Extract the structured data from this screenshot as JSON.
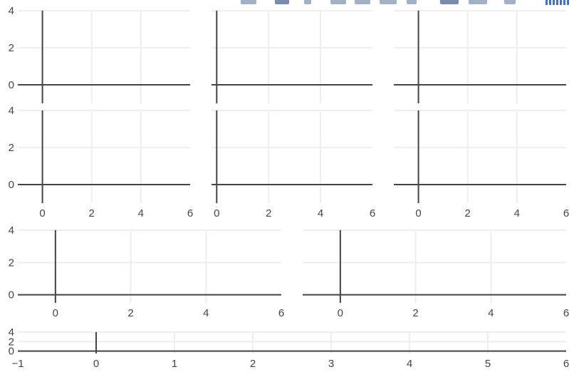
{
  "chart_data": [
    {
      "id": "p1",
      "type": "scatter",
      "x": [],
      "y": [],
      "xlim": [
        -1,
        6
      ],
      "ylim": [
        -1,
        4
      ],
      "xticks": [],
      "yticks": [
        0,
        2,
        4
      ],
      "grid": true
    },
    {
      "id": "p2",
      "type": "scatter",
      "x": [],
      "y": [],
      "xlim": [
        -0.2,
        6
      ],
      "ylim": [
        -1,
        4
      ],
      "xticks": [],
      "yticks": [],
      "grid": true
    },
    {
      "id": "p3",
      "type": "scatter",
      "x": [],
      "y": [],
      "xlim": [
        -1,
        6
      ],
      "ylim": [
        -1,
        4
      ],
      "xticks": [],
      "yticks": [],
      "grid": true
    },
    {
      "id": "p4",
      "type": "scatter",
      "x": [],
      "y": [],
      "xlim": [
        -1,
        6
      ],
      "ylim": [
        -1,
        4
      ],
      "xticks": [
        0,
        2,
        4,
        6
      ],
      "yticks": [
        0,
        2,
        4
      ],
      "grid": true
    },
    {
      "id": "p5",
      "type": "scatter",
      "x": [],
      "y": [],
      "xlim": [
        -0.2,
        6
      ],
      "ylim": [
        -1,
        4
      ],
      "xticks": [
        0,
        2,
        4,
        6
      ],
      "yticks": [],
      "grid": true
    },
    {
      "id": "p6",
      "type": "scatter",
      "x": [],
      "y": [],
      "xlim": [
        -1,
        6
      ],
      "ylim": [
        -1,
        4
      ],
      "xticks": [
        0,
        2,
        4,
        6
      ],
      "yticks": [],
      "grid": true
    },
    {
      "id": "p7",
      "type": "scatter",
      "x": [],
      "y": [],
      "xlim": [
        -1,
        6
      ],
      "ylim": [
        -0.5,
        4
      ],
      "xticks": [
        0,
        2,
        4,
        6
      ],
      "yticks": [
        0,
        2,
        4
      ],
      "grid": true
    },
    {
      "id": "p8",
      "type": "scatter",
      "x": [],
      "y": [],
      "xlim": [
        -1,
        6
      ],
      "ylim": [
        -0.5,
        4
      ],
      "xticks": [
        0,
        2,
        4,
        6
      ],
      "yticks": [],
      "grid": true
    },
    {
      "id": "p9",
      "type": "scatter",
      "x": [],
      "y": [],
      "xlim": [
        -1,
        6
      ],
      "ylim": [
        -0.5,
        4
      ],
      "xticks": [
        -1,
        0,
        1,
        2,
        3,
        4,
        5,
        6
      ],
      "yticks": [
        0,
        2,
        4
      ],
      "grid": true
    }
  ]
}
